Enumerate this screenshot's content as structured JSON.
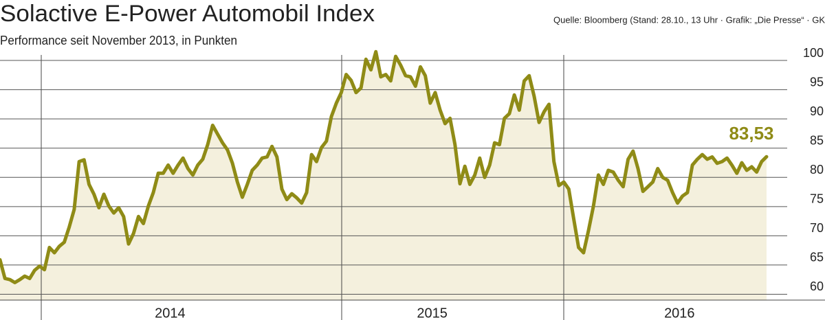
{
  "chart_data": {
    "type": "area",
    "title": "Solactive E-Power Automobil Index",
    "subtitle": "Performance seit November 2013, in Punkten",
    "source": "Quelle: Bloomberg (Stand: 28.10., 13 Uhr · Grafik: „Die Presse“ · GK",
    "annotation": "83,53",
    "line_color": "#8f8b16",
    "fill_color": "#f4f0dd",
    "grid": true,
    "ylim": [
      59,
      103
    ],
    "yticks": [
      60,
      65,
      70,
      75,
      80,
      85,
      90,
      95,
      100
    ],
    "categories": [
      null,
      null,
      null,
      null,
      null,
      null,
      null,
      null,
      null,
      null,
      null,
      null,
      null,
      null,
      null,
      null,
      null,
      null,
      null,
      null,
      null,
      null,
      null,
      null,
      null,
      null,
      null,
      null,
      null,
      null,
      null,
      null,
      null,
      "2014",
      null,
      null,
      null,
      null,
      null,
      null,
      null,
      null,
      null,
      null,
      null,
      null,
      null,
      null,
      null,
      null,
      null,
      null,
      null,
      null,
      null,
      null,
      null,
      null,
      null,
      null,
      null,
      null,
      null,
      null,
      null,
      null,
      null,
      null,
      null,
      null,
      null,
      null,
      null,
      null,
      null,
      null,
      null,
      null,
      null,
      null,
      null,
      null,
      null,
      null,
      null,
      null,
      "2015",
      null,
      null,
      null,
      null,
      null,
      null,
      null,
      null,
      null,
      null,
      null,
      null,
      null,
      null,
      null,
      null,
      null,
      null,
      null,
      null,
      null,
      null,
      null,
      null,
      null,
      null,
      null,
      null,
      null,
      null,
      null,
      null,
      null,
      null,
      null,
      null,
      null,
      null,
      null,
      null,
      null,
      null,
      null,
      null,
      null,
      null,
      null,
      null,
      null,
      "2016",
      null,
      null,
      null,
      null,
      null,
      null,
      null,
      null,
      null,
      null,
      null,
      null,
      null,
      null,
      null,
      null,
      null,
      null,
      null
    ],
    "values": [
      65.9,
      62.7,
      62.5,
      62.0,
      62.5,
      63.1,
      62.7,
      64.1,
      64.8,
      64.2,
      68.0,
      67.1,
      68.2,
      68.9,
      71.5,
      74.5,
      82.7,
      83.0,
      78.8,
      77.1,
      74.8,
      77.1,
      75.1,
      73.9,
      74.8,
      73.3,
      68.6,
      70.4,
      73.3,
      72.1,
      75.1,
      77.4,
      80.7,
      80.7,
      82.1,
      80.7,
      82.1,
      83.3,
      81.5,
      80.4,
      82.1,
      83.1,
      85.6,
      88.9,
      87.4,
      85.9,
      84.7,
      82.4,
      79.2,
      76.6,
      78.8,
      81.2,
      82.1,
      83.3,
      83.5,
      85.3,
      83.5,
      78.0,
      76.2,
      77.2,
      76.5,
      75.6,
      77.4,
      83.9,
      82.7,
      85.1,
      86.2,
      90.4,
      92.7,
      94.5,
      97.6,
      96.6,
      94.5,
      95.3,
      100.2,
      98.4,
      101.5,
      97.2,
      97.6,
      96.5,
      100.7,
      99.2,
      97.4,
      97.2,
      95.6,
      98.9,
      97.4,
      92.7,
      94.5,
      91.5,
      89.2,
      90.1,
      85.6,
      78.9,
      81.9,
      78.8,
      80.4,
      83.3,
      80.0,
      82.1,
      85.9,
      85.6,
      90.1,
      90.9,
      94.1,
      91.5,
      96.5,
      97.4,
      93.9,
      89.4,
      91.2,
      92.5,
      82.7,
      78.6,
      79.2,
      78.0,
      72.9,
      68.0,
      67.1,
      70.9,
      75.1,
      80.4,
      78.8,
      81.2,
      80.9,
      79.5,
      78.4,
      83.1,
      84.5,
      81.5,
      77.6,
      78.4,
      79.2,
      81.5,
      80.0,
      79.5,
      77.4,
      75.6,
      76.8,
      77.4,
      82.1,
      83.1,
      83.9,
      83.1,
      83.5,
      82.4,
      82.7,
      83.3,
      82.1,
      80.7,
      82.5,
      81.2,
      81.8,
      80.9,
      82.7,
      83.53
    ]
  }
}
